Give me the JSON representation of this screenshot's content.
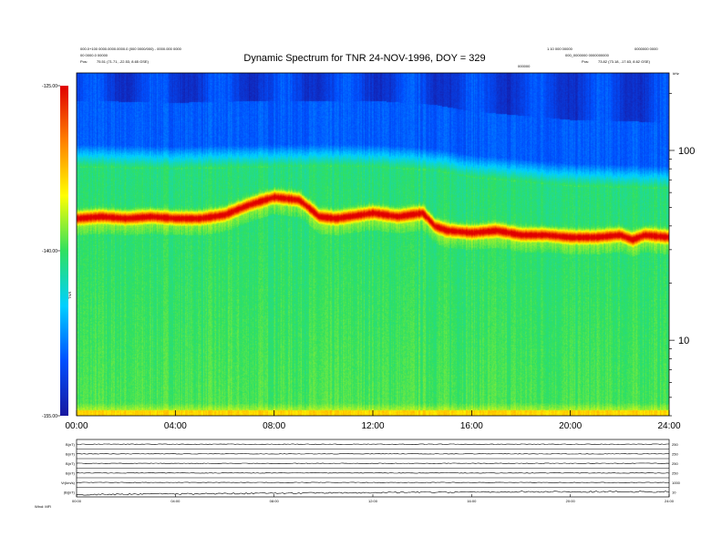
{
  "header": {
    "title": "Dynamic Spectrum for TNR 24-NOV-1996, DOY = 329",
    "top_left_line1": "000.0+100 0000.0000.0000.0 (000 0000/000) - 0000.000 0000",
    "top_left_line2": "00 0000.0 00000",
    "top_left_line3": "Pos:",
    "top_left_coords": "75.51 (71.71, -22.53, 8.65 GSE)",
    "top_right_line1": "1.10 000 00000",
    "top_right_line2": "0000000 0000",
    "top_right_line3": "000_0000000  0000000000",
    "top_right_pos_label": "Pos:",
    "top_right_coords": "73.82 (73.18, -17.63, 8.62 GSE)",
    "center_small": "000000",
    "corner_unit": "kHz"
  },
  "bottom": {
    "footer_left": "Wind:  MFI",
    "panel_labels": [
      "B(nT)",
      "B(nT)",
      "B(nT)",
      "B(nT)",
      "Vr(km/s)",
      "|B|(nT)"
    ],
    "right_ticks": [
      "250",
      "250",
      "250",
      "250",
      "1000",
      "10"
    ]
  },
  "chart_data": {
    "type": "heatmap",
    "title": "Dynamic Spectrum for TNR 24-NOV-1996, DOY = 329",
    "xlabel": "",
    "ylabel": "kHz",
    "x_tick_labels": [
      "00:00",
      "04:00",
      "08:00",
      "12:00",
      "16:00",
      "20:00",
      "24:00"
    ],
    "x_range_hours": [
      0,
      24
    ],
    "y_scale": "log",
    "y_tick_labels": [
      "100",
      "10"
    ],
    "y_range_khz": [
      4,
      256
    ],
    "colorbar": {
      "label": "TNR",
      "tick_labels": [
        "-125.00",
        "-140.00",
        "-155.00"
      ],
      "range_db": [
        -155,
        -125
      ],
      "colors": [
        "#1818a0",
        "#0050ff",
        "#00d0ff",
        "#30e060",
        "#ffff00",
        "#ff8000",
        "#e00000"
      ]
    },
    "plasma_line_khz": {
      "hours": [
        0,
        1,
        2,
        3,
        4,
        5,
        6,
        7,
        8,
        9,
        9.8,
        10.5,
        11,
        12,
        13,
        14,
        14.5,
        15,
        16,
        17,
        18,
        19,
        20,
        21,
        22,
        22.5,
        23,
        24
      ],
      "values": [
        44,
        45,
        44,
        45,
        44,
        44,
        46,
        52,
        57,
        55,
        45,
        44,
        45,
        47,
        45,
        47,
        40,
        38,
        37,
        38,
        36,
        36,
        35,
        35,
        36,
        34,
        36,
        35
      ]
    },
    "background_level_khz": {
      "hours": [
        0,
        4,
        8,
        12,
        14.5,
        16,
        20,
        24
      ],
      "values": [
        82,
        80,
        82,
        82,
        78,
        72,
        65,
        63
      ]
    },
    "grid": false,
    "legend": "none"
  }
}
